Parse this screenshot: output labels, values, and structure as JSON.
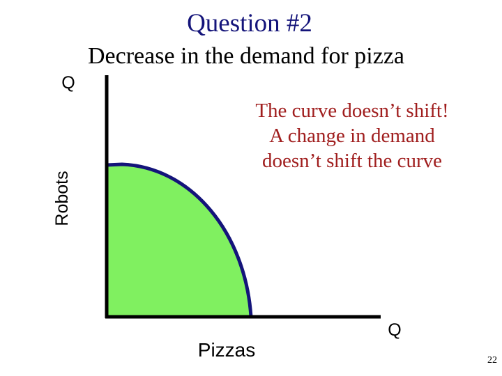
{
  "header": {
    "title": "Question #2",
    "subtitle": "Decrease in the demand for pizza"
  },
  "axes": {
    "y_quantity_label": "Q",
    "y_axis_label": "Robots",
    "x_axis_label": "Pizzas",
    "x_quantity_label": "Q"
  },
  "annotation": {
    "lines": [
      "The curve doesn’t shift!",
      "A change in demand",
      "doesn’t shift the curve"
    ]
  },
  "footer": {
    "page_number": "22"
  }
}
